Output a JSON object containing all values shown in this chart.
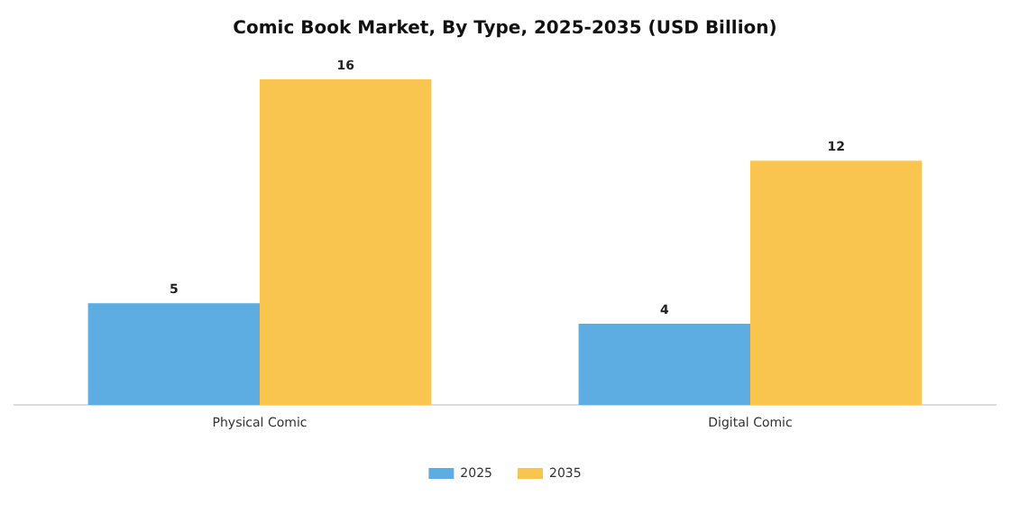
{
  "chart_data": {
    "type": "bar",
    "title": "Comic Book Market, By Type, 2025-2035 (USD Billion)",
    "categories": [
      "Physical Comic",
      "Digital Comic"
    ],
    "series": [
      {
        "name": "2025",
        "color": "#5dade2",
        "values": [
          5,
          4
        ]
      },
      {
        "name": "2035",
        "color": "#f9c54e",
        "values": [
          16,
          12
        ]
      }
    ],
    "data_labels": true,
    "legend": "bottom",
    "grid": false
  }
}
